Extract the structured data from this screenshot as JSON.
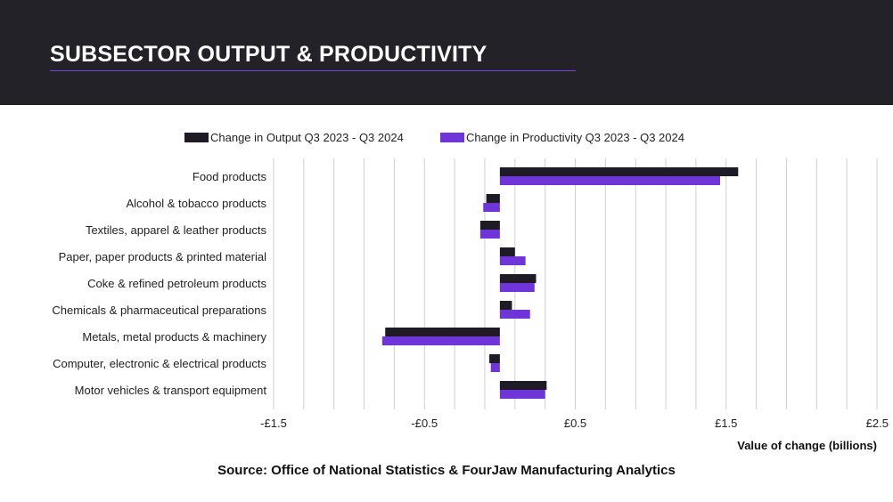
{
  "header": {
    "title": "SUBSECTOR OUTPUT & PRODUCTIVITY"
  },
  "colors": {
    "header_bg": "#232229",
    "accent": "#7b3fe4",
    "output": "#1e1b26",
    "productivity": "#6f35d9"
  },
  "chart_data": {
    "type": "bar",
    "orientation": "horizontal",
    "categories": [
      "Food products",
      "Alcohol & tobacco products",
      "Textiles, apparel & leather products",
      "Paper, paper products & printed material",
      "Coke & refined petroleum products",
      "Chemicals & pharmaceutical preparations",
      "Metals, metal products & machinery",
      "Computer, electronic & electrical products",
      "Motor vehicles & transport equipment"
    ],
    "series": [
      {
        "name": "Change in Output Q3 2023 - Q3 2024",
        "color": "#1e1b26",
        "values": [
          1.58,
          -0.09,
          -0.13,
          0.1,
          0.24,
          0.08,
          -0.76,
          -0.07,
          0.31
        ]
      },
      {
        "name": "Change in Productivity Q3 2023 - Q3 2024",
        "color": "#6f35d9",
        "values": [
          1.46,
          -0.11,
          -0.13,
          0.17,
          0.23,
          0.2,
          -0.78,
          -0.06,
          0.3
        ]
      }
    ],
    "xlim": [
      -1.5,
      2.5
    ],
    "xticks": [
      -1.5,
      -0.5,
      0.5,
      1.5,
      2.5
    ],
    "xtick_labels": [
      "-£1.5",
      "-£0.5",
      "£0.5",
      "£1.5",
      "£2.5"
    ],
    "xlabel": "Value of change (billions)",
    "ylabel": "",
    "grid": "vertical",
    "legend": "top"
  },
  "source": "Source: Office of National Statistics & FourJaw Manufacturing Analytics"
}
